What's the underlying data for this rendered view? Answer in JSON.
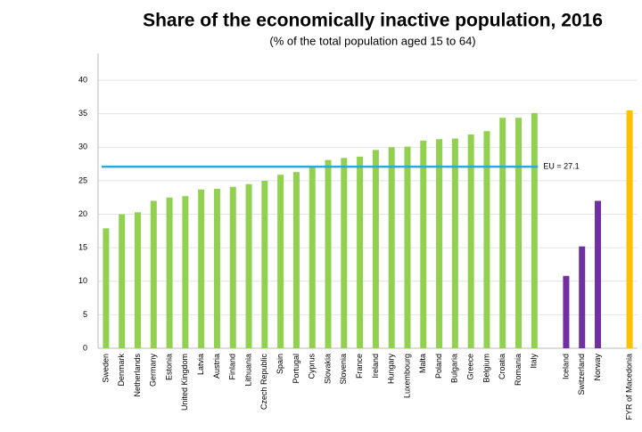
{
  "chart_data": {
    "type": "bar",
    "title": "Share of the economically inactive population, 2016",
    "subtitle": "(% of the total population aged 15 to 64)",
    "categories": [
      "Sweden",
      "Denmark",
      "Netherlands",
      "Germany",
      "Estonia",
      "United Kingdom",
      "Latvia",
      "Austria",
      "Finland",
      "Lithuania",
      "Czech Republic",
      "Spain",
      "Portugal",
      "Cyprus",
      "Slovakia",
      "Slovenia",
      "France",
      "Ireland",
      "Hungary",
      "Luxembourg",
      "Malta",
      "Poland",
      "Bulgaria",
      "Greece",
      "Belgium",
      "Croatia",
      "Romania",
      "Italy",
      null,
      "Iceland",
      "Switzerland",
      "Norway",
      null,
      "FYR of Macedonia"
    ],
    "values": [
      17.9,
      20.0,
      20.3,
      22.0,
      22.5,
      22.7,
      23.7,
      23.8,
      24.1,
      24.5,
      25.0,
      25.9,
      26.3,
      27.0,
      28.1,
      28.4,
      28.6,
      29.6,
      30.0,
      30.1,
      31.0,
      31.2,
      31.3,
      31.9,
      32.4,
      34.4,
      34.4,
      35.1,
      null,
      10.8,
      15.2,
      22.0,
      null,
      35.5
    ],
    "colors": [
      "#92d050",
      "#92d050",
      "#92d050",
      "#92d050",
      "#92d050",
      "#92d050",
      "#92d050",
      "#92d050",
      "#92d050",
      "#92d050",
      "#92d050",
      "#92d050",
      "#92d050",
      "#92d050",
      "#92d050",
      "#92d050",
      "#92d050",
      "#92d050",
      "#92d050",
      "#92d050",
      "#92d050",
      "#92d050",
      "#92d050",
      "#92d050",
      "#92d050",
      "#92d050",
      "#92d050",
      "#92d050",
      null,
      "#7030a0",
      "#7030a0",
      "#7030a0",
      null,
      "#ffc000"
    ],
    "reference": {
      "value": 27.1,
      "label": "EU = 27.1",
      "color": "#29a9e0"
    },
    "ylim": [
      0,
      44
    ],
    "yticks": [
      0,
      5,
      10,
      15,
      20,
      25,
      30,
      35,
      40
    ],
    "grid": true
  }
}
